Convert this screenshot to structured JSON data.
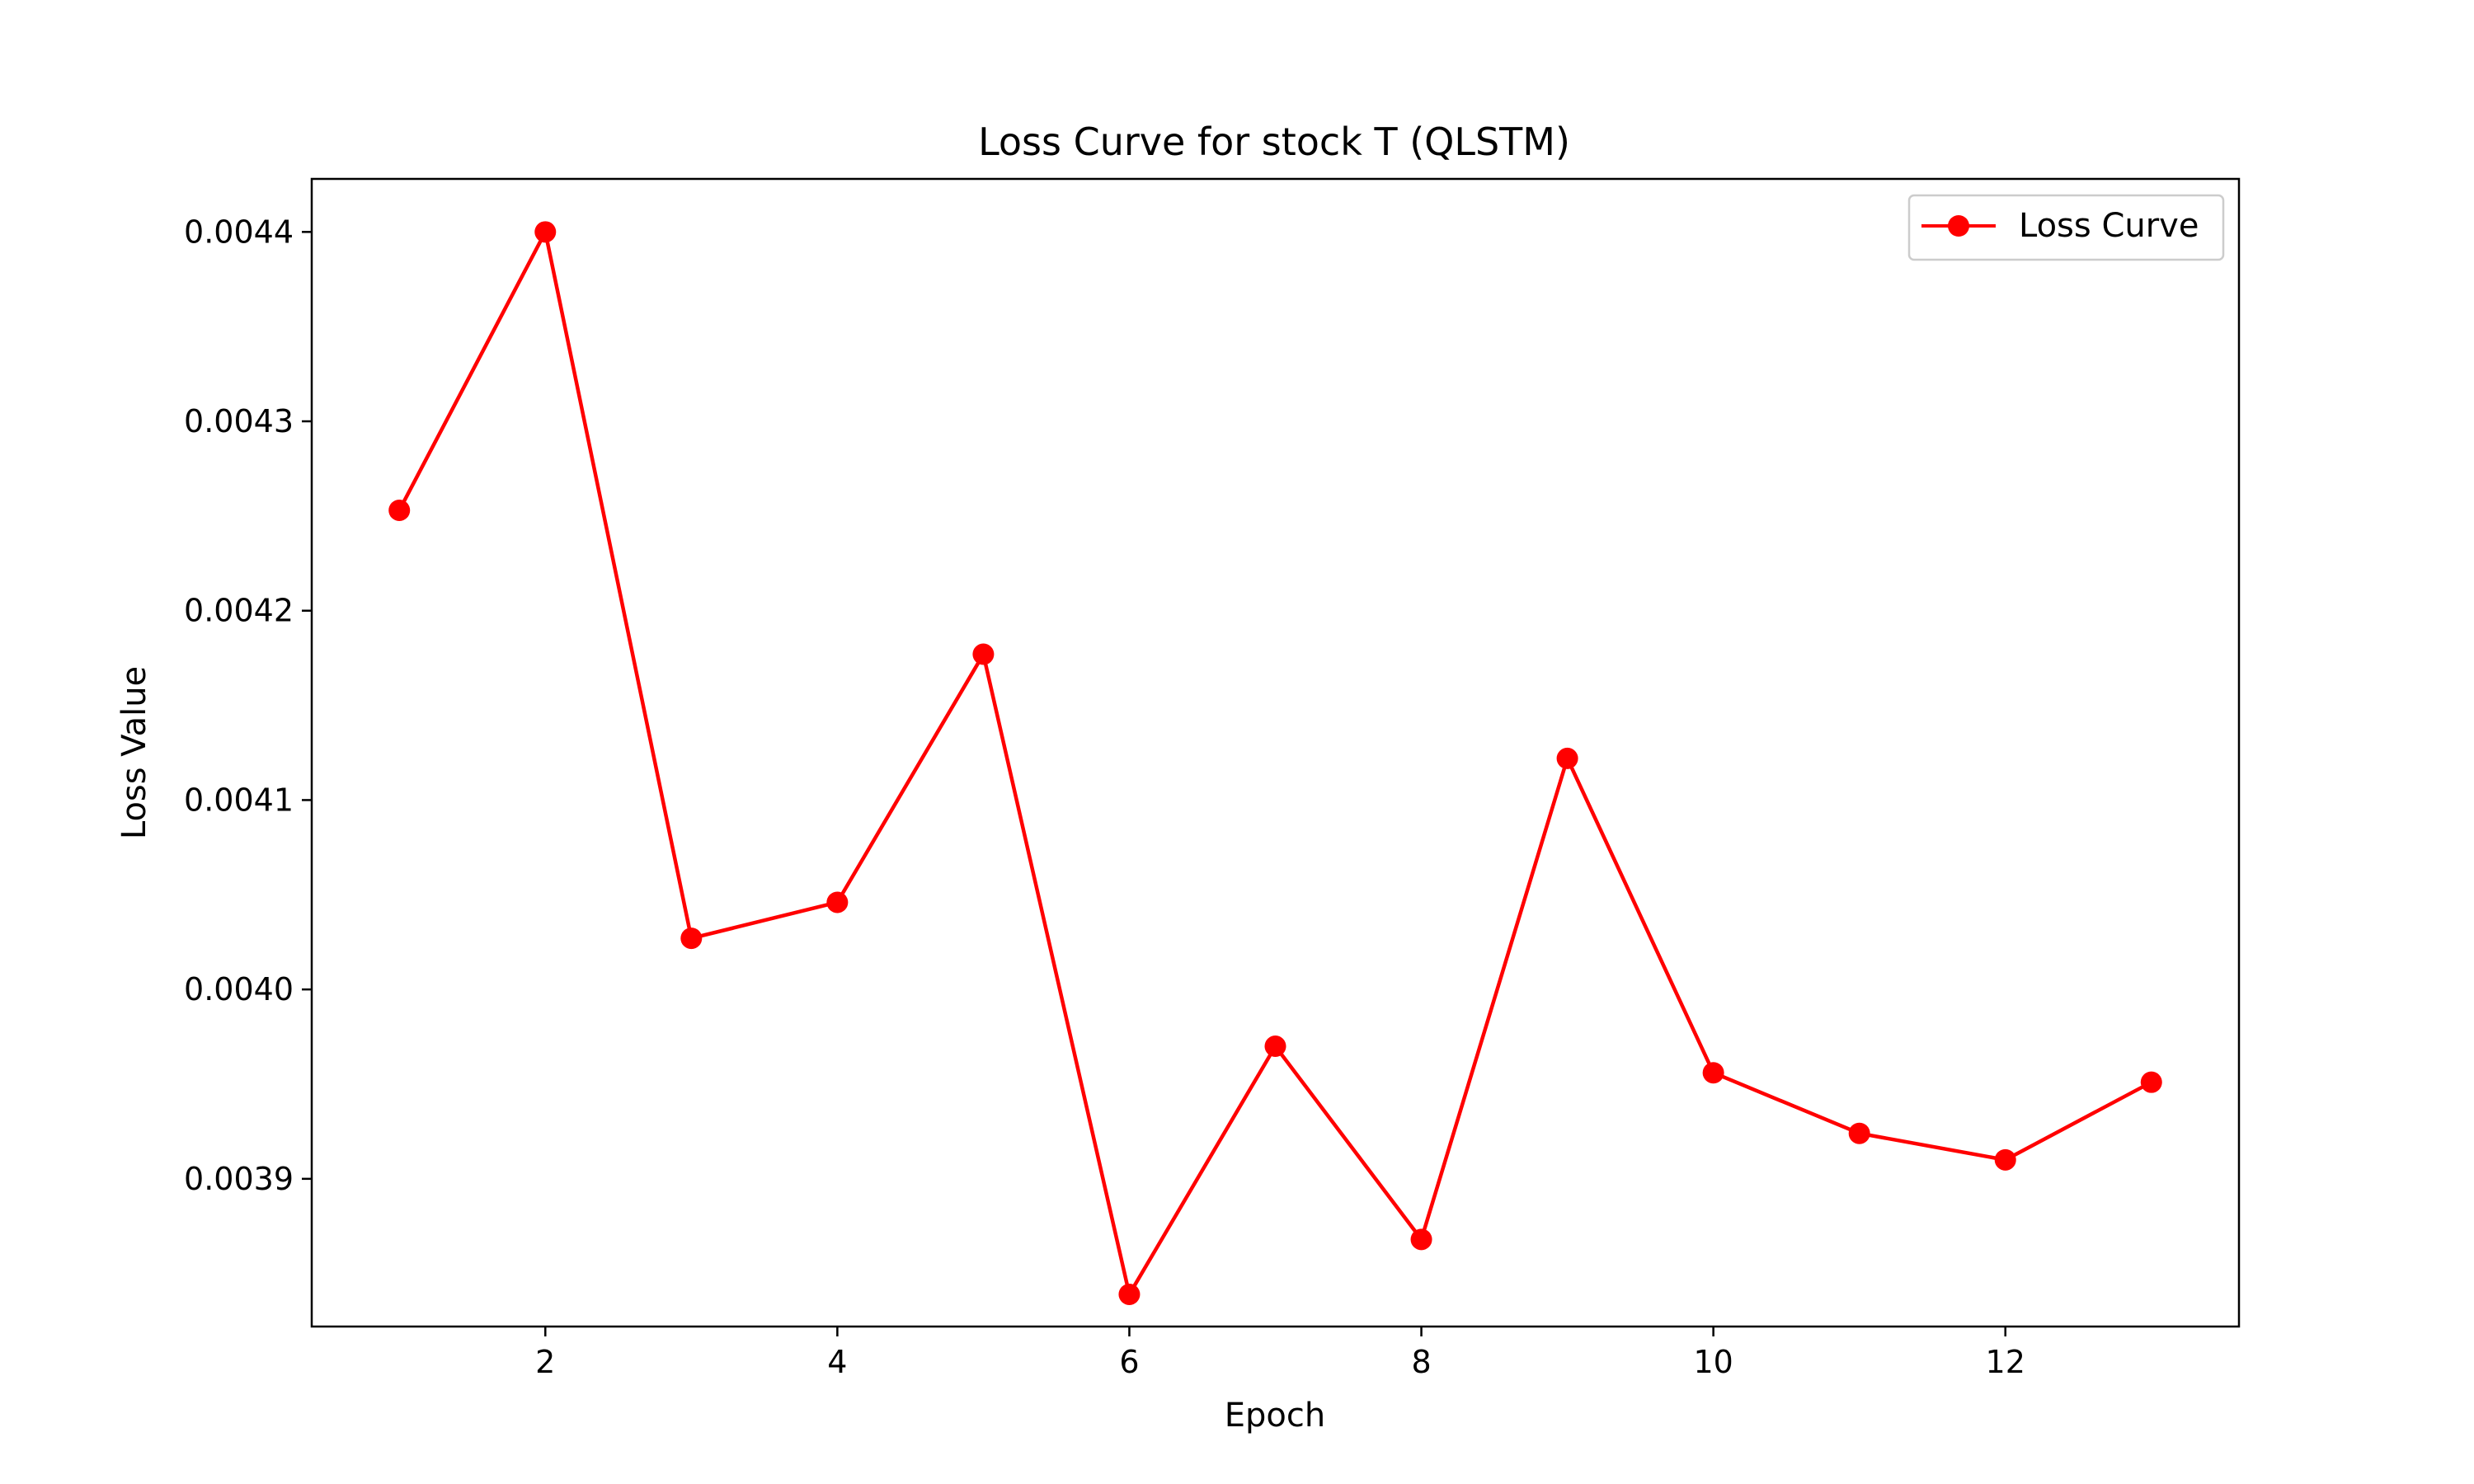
{
  "chart_data": {
    "type": "line",
    "title": "Loss Curve for stock T (QLSTM)",
    "xlabel": "Epoch",
    "ylabel": "Loss Value",
    "x": [
      1,
      2,
      3,
      4,
      5,
      6,
      7,
      8,
      9,
      10,
      11,
      12,
      13
    ],
    "series": [
      {
        "name": "Loss Curve",
        "color": "#ff0000",
        "marker": "circle",
        "values": [
          0.004253,
          0.0044,
          0.004027,
          0.004046,
          0.004177,
          0.003839,
          0.00397,
          0.003868,
          0.004122,
          0.003956,
          0.003924,
          0.00391,
          0.003951
        ]
      }
    ],
    "xlim": [
      0.4,
      13.6
    ],
    "ylim": [
      0.003822,
      0.004428
    ],
    "xticks": [
      2,
      4,
      6,
      8,
      10,
      12
    ],
    "xtick_labels": [
      "2",
      "4",
      "6",
      "8",
      "10",
      "12"
    ],
    "yticks": [
      0.0039,
      0.004,
      0.0041,
      0.0042,
      0.0043,
      0.0044
    ],
    "ytick_labels": [
      "0.0039",
      "0.0040",
      "0.0041",
      "0.0042",
      "0.0043",
      "0.0044"
    ],
    "grid": false,
    "legend": "upper right"
  }
}
